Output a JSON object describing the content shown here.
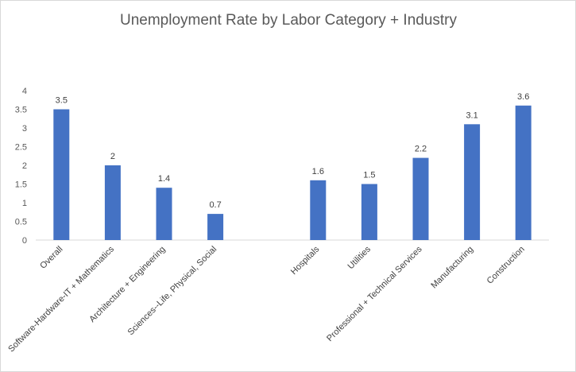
{
  "chart_data": {
    "type": "bar",
    "title": "Unemployment Rate by Labor Category + Industry",
    "xlabel": "",
    "ylabel": "",
    "ylim": [
      0,
      4
    ],
    "yticks": [
      "0",
      "0.5",
      "1",
      "1.5",
      "2",
      "2.5",
      "3",
      "3.5",
      "4"
    ],
    "grid": false,
    "legend": "none",
    "bar_color": "#4472C4",
    "categories": [
      "Overall",
      "Software-Hardware-IT + Mathematics",
      "Architecture + Engineering",
      "Sciences--Life, Physical, Social",
      "",
      "Hospitals",
      "Utilities",
      "Professional + Technical Services",
      "Manufacturing",
      "Construction"
    ],
    "values": [
      3.5,
      2,
      1.4,
      0.7,
      null,
      1.6,
      1.5,
      2.2,
      3.1,
      3.6
    ],
    "data_labels": [
      "3.5",
      "2",
      "1.4",
      "0.7",
      "",
      "1.6",
      "1.5",
      "2.2",
      "3.1",
      "3.6"
    ]
  }
}
